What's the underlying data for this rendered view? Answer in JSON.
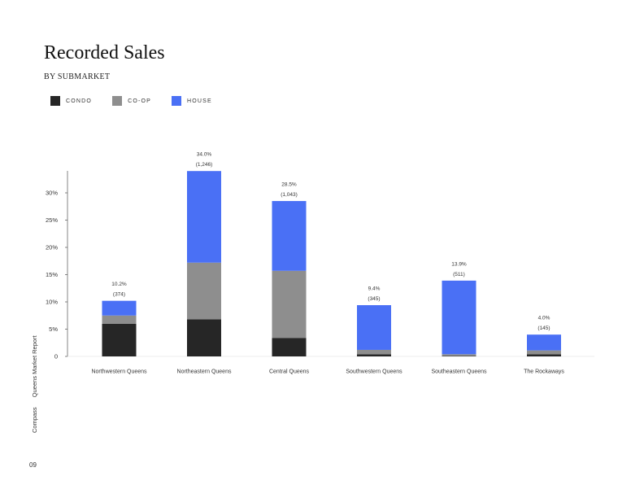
{
  "header": {
    "title": "Recorded Sales",
    "subtitle": "BY SUBMARKET"
  },
  "legend": [
    {
      "label": "CONDO",
      "color": "#262626"
    },
    {
      "label": "CO-OP",
      "color": "#8e8e8e"
    },
    {
      "label": "HOUSE",
      "color": "#4a70f5"
    }
  ],
  "footer": {
    "brand": "Compass",
    "report": "Queens Market Report",
    "page": "09"
  },
  "chart_data": {
    "type": "bar",
    "stacked": true,
    "categories": [
      "Northwestern Queens",
      "Northeastern Queens",
      "Central Queens",
      "Southwestern Queens",
      "Southeastern Queens",
      "The Rockaways"
    ],
    "series": [
      {
        "name": "CONDO",
        "color": "#262626",
        "values": [
          6.0,
          6.8,
          3.4,
          0.4,
          0.1,
          0.4
        ]
      },
      {
        "name": "CO-OP",
        "color": "#8e8e8e",
        "values": [
          1.5,
          10.4,
          12.3,
          0.8,
          0.3,
          0.7
        ]
      },
      {
        "name": "HOUSE",
        "color": "#4a70f5",
        "values": [
          2.7,
          16.8,
          12.8,
          8.2,
          13.5,
          2.9
        ]
      }
    ],
    "totals": [
      "10.2%",
      "34.0%",
      "28.5%",
      "9.4%",
      "13.9%",
      "4.0%"
    ],
    "counts": [
      "(374)",
      "(1,246)",
      "(1,043)",
      "(345)",
      "(511)",
      "(145)"
    ],
    "yticks": [
      "0",
      "5%",
      "10%",
      "15%",
      "20%",
      "25%",
      "30%"
    ],
    "ytick_values": [
      0,
      5,
      10,
      15,
      20,
      25,
      30
    ],
    "ylim": [
      0,
      34
    ],
    "grid": false,
    "legend_position": "top-left"
  }
}
